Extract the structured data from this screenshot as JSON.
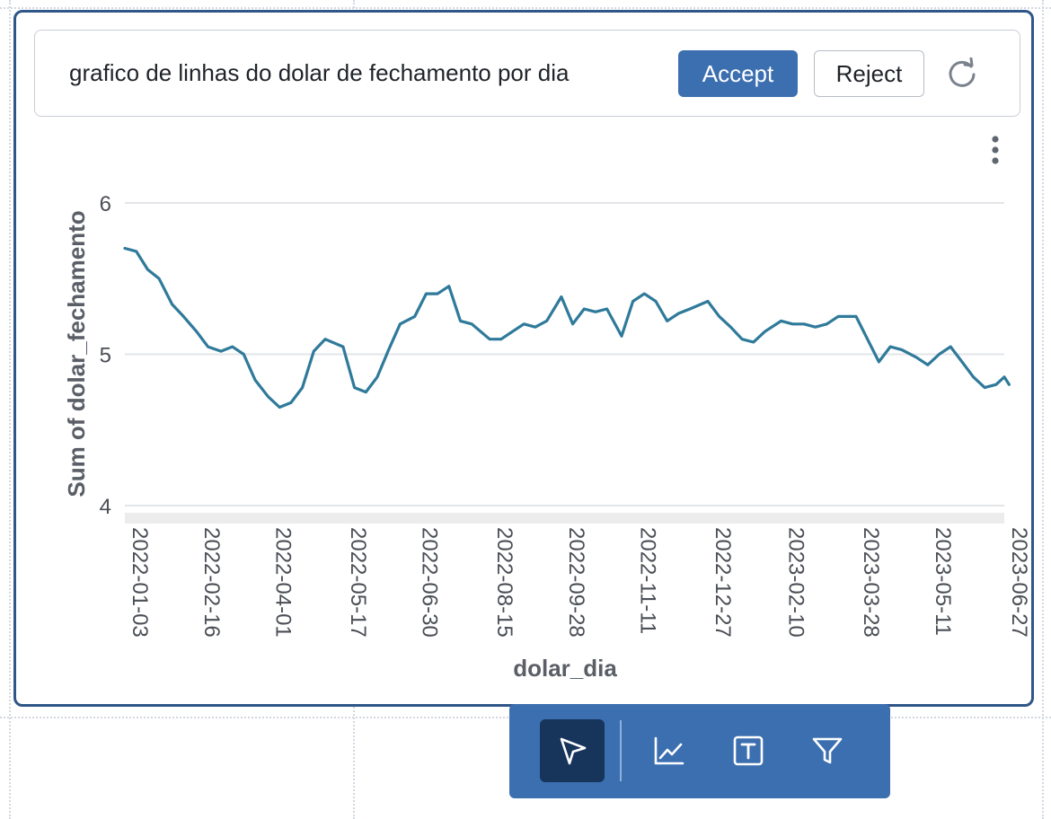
{
  "prompt": {
    "text": "grafico de linhas do dolar de fechamento por dia",
    "accept_label": "Accept",
    "reject_label": "Reject"
  },
  "icons": {
    "refresh": "refresh-icon",
    "menu": "kebab-menu-icon",
    "tools": [
      "pointer-icon",
      "line-chart-icon",
      "text-box-icon",
      "filter-icon"
    ]
  },
  "colors": {
    "accent": "#3c6fb0",
    "card_border": "#2e5688",
    "line": "#2f7a9a",
    "toolbar_active": "#17345b"
  },
  "chart_data": {
    "type": "line",
    "xlabel": "dolar_dia",
    "ylabel": "Sum of dolar_fechamento",
    "ylim": [
      4,
      6
    ],
    "y_ticks": [
      4,
      5,
      6
    ],
    "x_ticks": [
      "2022-01-03",
      "2022-02-16",
      "2022-04-01",
      "2022-05-17",
      "2022-06-30",
      "2022-08-15",
      "2022-09-28",
      "2022-11-11",
      "2022-12-27",
      "2023-02-10",
      "2023-03-28",
      "2023-05-11",
      "2023-06-27"
    ],
    "grid": true,
    "series": [
      {
        "points": [
          [
            "2022-01-03",
            5.7
          ],
          [
            "2022-01-10",
            5.68
          ],
          [
            "2022-01-17",
            5.56
          ],
          [
            "2022-01-24",
            5.5
          ],
          [
            "2022-02-01",
            5.33
          ],
          [
            "2022-02-08",
            5.25
          ],
          [
            "2022-02-16",
            5.15
          ],
          [
            "2022-02-23",
            5.05
          ],
          [
            "2022-03-03",
            5.02
          ],
          [
            "2022-03-10",
            5.05
          ],
          [
            "2022-03-17",
            5.0
          ],
          [
            "2022-03-24",
            4.83
          ],
          [
            "2022-04-01",
            4.72
          ],
          [
            "2022-04-08",
            4.65
          ],
          [
            "2022-04-15",
            4.68
          ],
          [
            "2022-04-22",
            4.78
          ],
          [
            "2022-04-29",
            5.02
          ],
          [
            "2022-05-06",
            5.1
          ],
          [
            "2022-05-17",
            5.05
          ],
          [
            "2022-05-24",
            4.78
          ],
          [
            "2022-05-31",
            4.75
          ],
          [
            "2022-06-07",
            4.85
          ],
          [
            "2022-06-14",
            5.03
          ],
          [
            "2022-06-21",
            5.2
          ],
          [
            "2022-06-30",
            5.25
          ],
          [
            "2022-07-07",
            5.4
          ],
          [
            "2022-07-14",
            5.4
          ],
          [
            "2022-07-21",
            5.45
          ],
          [
            "2022-07-28",
            5.22
          ],
          [
            "2022-08-04",
            5.2
          ],
          [
            "2022-08-15",
            5.1
          ],
          [
            "2022-08-22",
            5.1
          ],
          [
            "2022-08-29",
            5.15
          ],
          [
            "2022-09-05",
            5.2
          ],
          [
            "2022-09-12",
            5.18
          ],
          [
            "2022-09-19",
            5.22
          ],
          [
            "2022-09-28",
            5.38
          ],
          [
            "2022-10-05",
            5.2
          ],
          [
            "2022-10-12",
            5.3
          ],
          [
            "2022-10-19",
            5.28
          ],
          [
            "2022-10-26",
            5.3
          ],
          [
            "2022-11-04",
            5.12
          ],
          [
            "2022-11-11",
            5.35
          ],
          [
            "2022-11-18",
            5.4
          ],
          [
            "2022-11-25",
            5.35
          ],
          [
            "2022-12-02",
            5.22
          ],
          [
            "2022-12-09",
            5.27
          ],
          [
            "2022-12-16",
            5.3
          ],
          [
            "2022-12-27",
            5.35
          ],
          [
            "2023-01-03",
            5.25
          ],
          [
            "2023-01-10",
            5.18
          ],
          [
            "2023-01-17",
            5.1
          ],
          [
            "2023-01-24",
            5.08
          ],
          [
            "2023-01-31",
            5.15
          ],
          [
            "2023-02-10",
            5.22
          ],
          [
            "2023-02-17",
            5.2
          ],
          [
            "2023-02-24",
            5.2
          ],
          [
            "2023-03-03",
            5.18
          ],
          [
            "2023-03-10",
            5.2
          ],
          [
            "2023-03-17",
            5.25
          ],
          [
            "2023-03-28",
            5.25
          ],
          [
            "2023-04-04",
            5.1
          ],
          [
            "2023-04-11",
            4.95
          ],
          [
            "2023-04-18",
            5.05
          ],
          [
            "2023-04-25",
            5.03
          ],
          [
            "2023-05-04",
            4.98
          ],
          [
            "2023-05-11",
            4.93
          ],
          [
            "2023-05-18",
            5.0
          ],
          [
            "2023-05-25",
            5.05
          ],
          [
            "2023-06-01",
            4.95
          ],
          [
            "2023-06-08",
            4.85
          ],
          [
            "2023-06-15",
            4.78
          ],
          [
            "2023-06-22",
            4.8
          ],
          [
            "2023-06-27",
            4.85
          ],
          [
            "2023-06-30",
            4.8
          ]
        ]
      }
    ]
  }
}
